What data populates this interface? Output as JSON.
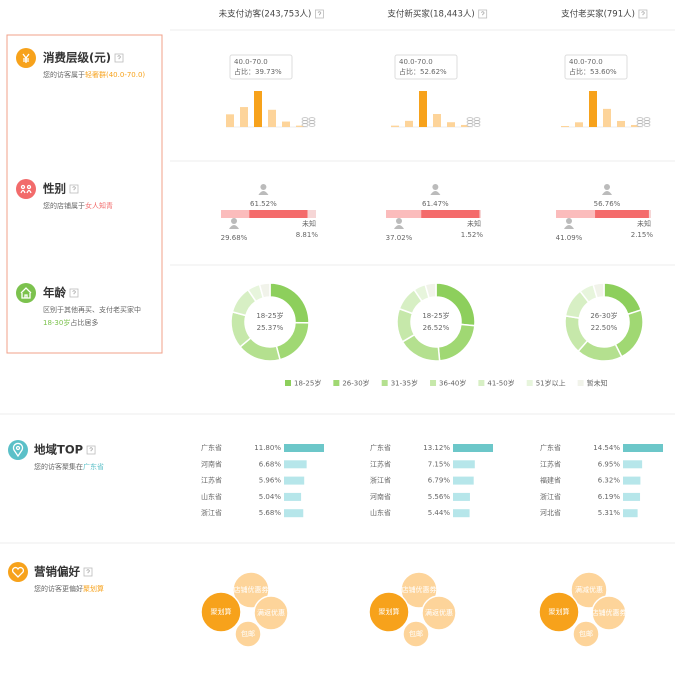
{
  "columns": [
    "未支付访客(243,753人)",
    "支付新买家(18,443人)",
    "支付老买家(791人)"
  ],
  "price": {
    "title": "消费层级(元)",
    "desc": "您的访客属于",
    "highlight": "轻奢群(40.0-70.0)",
    "bar_color": "#fdd49a",
    "peak_color": "#f7a21b",
    "charts": [
      {
        "range": "40.0-70.0",
        "share": "占比：39.73%",
        "values": [
          14,
          22,
          39.73,
          19,
          6,
          1.5
        ]
      },
      {
        "range": "40.0-70.0",
        "share": "占比：52.62%",
        "values": [
          2,
          9,
          52.62,
          19,
          7,
          3
        ]
      },
      {
        "range": "40.0-70.0",
        "share": "占比：53.60%",
        "values": [
          1.5,
          7,
          53.6,
          27,
          9,
          3
        ]
      }
    ]
  },
  "gender": {
    "title": "性别",
    "desc": "您的店铺属于",
    "highlight": "女人知青",
    "unknown": "未知",
    "colors": [
      "#fbbcbc",
      "#f46b6b",
      "#f6d6d6"
    ],
    "charts": [
      {
        "values": [
          29.68,
          61.52,
          8.81
        ],
        "value_labels": [
          "29.68%",
          "61.52%",
          "8.81%"
        ]
      },
      {
        "values": [
          37.02,
          61.47,
          1.52
        ],
        "value_labels": [
          "37.02%",
          "61.47%",
          "1.52%"
        ]
      },
      {
        "values": [
          41.09,
          56.76,
          2.15
        ],
        "value_labels": [
          "41.09%",
          "56.76%",
          "2.15%"
        ]
      }
    ]
  },
  "age": {
    "title": "年龄",
    "desc": "区别于其他再买、支付老买家中",
    "highlight": "18-30岁",
    "desc_end": "占比居多",
    "legend": [
      "18-25岁",
      "26-30岁",
      "31-35岁",
      "36-40岁",
      "41-50岁",
      "51岁以上",
      "暂未知"
    ],
    "colors": [
      "#8dcf5c",
      "#a0d873",
      "#b4e08f",
      "#c6e8aa",
      "#d7efc4",
      "#e7f5dc",
      "#f1f3ea"
    ],
    "charts": [
      {
        "center_name": "18-25岁",
        "center_value": "25.37%",
        "values": [
          25.37,
          20.5,
          18.1,
          15.2,
          11.3,
          5.2,
          4.33
        ]
      },
      {
        "center_name": "18-25岁",
        "center_value": "26.52%",
        "values": [
          26.52,
          22,
          18,
          14,
          10,
          5,
          4.48
        ]
      },
      {
        "center_name": "26-30岁",
        "center_value": "22.50%",
        "values": [
          20,
          22.5,
          19,
          16,
          12,
          6,
          4.5
        ]
      }
    ]
  },
  "region": {
    "title": "地域TOP",
    "desc": "您的访客聚集在",
    "highlight": "广东省",
    "top_color": "#6cc7c9",
    "color": "#b6e6ea",
    "charts": [
      {
        "names": [
          "广东省",
          "河南省",
          "江苏省",
          "山东省",
          "浙江省"
        ],
        "values": [
          11.8,
          6.68,
          5.96,
          5.04,
          5.68
        ],
        "value_labels": [
          "11.80%",
          "6.68%",
          "5.96%",
          "5.04%",
          "5.68%"
        ]
      },
      {
        "names": [
          "广东省",
          "江苏省",
          "浙江省",
          "河南省",
          "山东省"
        ],
        "values": [
          13.12,
          7.15,
          6.79,
          5.56,
          5.44
        ],
        "value_labels": [
          "13.12%",
          "7.15%",
          "6.79%",
          "5.56%",
          "5.44%"
        ]
      },
      {
        "names": [
          "广东省",
          "江苏省",
          "福建省",
          "浙江省",
          "河北省"
        ],
        "values": [
          14.54,
          6.95,
          6.32,
          6.19,
          5.31
        ],
        "value_labels": [
          "14.54%",
          "6.95%",
          "6.32%",
          "6.19%",
          "5.31%"
        ]
      }
    ]
  },
  "marketing": {
    "title": "营销偏好",
    "desc": "您的访客更偏好",
    "highlight": "聚划算",
    "main_color": "#f7a21b",
    "color": "#fdd49a",
    "charts": [
      {
        "labels": [
          "聚划算",
          "店铺优惠券",
          "满返优惠",
          "包邮"
        ]
      },
      {
        "labels": [
          "聚划算",
          "店铺优惠券",
          "满返优惠",
          "包邮"
        ]
      },
      {
        "labels": [
          "聚划算",
          "满减优惠",
          "店铺优惠券",
          "包邮"
        ]
      }
    ]
  }
}
